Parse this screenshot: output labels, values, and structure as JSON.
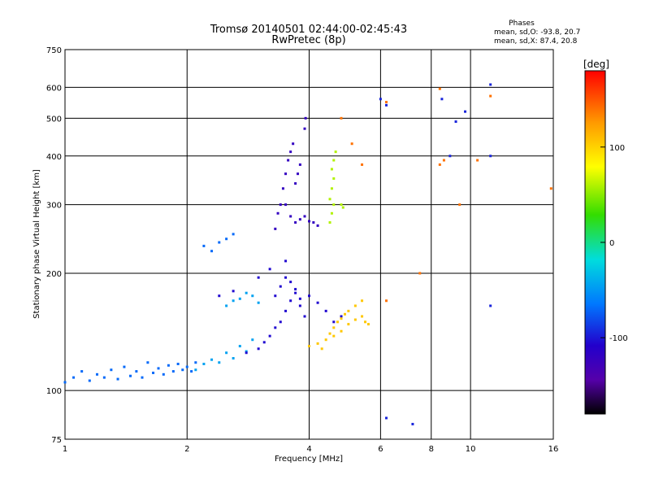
{
  "chart_data": {
    "type": "scatter",
    "title": "Tromsø 20140501 02:44:00-02:45:43",
    "subtitle": "RwPretec (8p)",
    "stats": {
      "heading": "Phases",
      "line1": "mean, sd,O: -93.8, 20.7",
      "line2": "mean, sd,X:  87.4, 20.8"
    },
    "xlabel": "Frequency [MHz]",
    "ylabel": "Stationary phase Virtual Height [km]",
    "x_scale": "log",
    "y_scale": "log",
    "xlim": [
      1,
      16
    ],
    "ylim": [
      75,
      750
    ],
    "x_ticks": [
      1,
      2,
      4,
      6,
      8,
      10,
      16
    ],
    "x_tick_labels": [
      "1",
      "2",
      "4",
      "6",
      "8",
      "10",
      "16"
    ],
    "y_ticks": [
      75,
      100,
      200,
      300,
      400,
      500,
      600,
      750
    ],
    "y_tick_labels": [
      "75",
      "100",
      "200",
      "300",
      "400",
      "500",
      "600",
      "750"
    ],
    "grid": true,
    "colorbar": {
      "label": "[deg]",
      "range": [
        -180,
        180
      ],
      "ticks": [
        100,
        0,
        -100
      ],
      "tick_labels": [
        "100",
        "0",
        "-100"
      ]
    },
    "series": [
      {
        "color_phase": -70,
        "points": [
          [
            1.0,
            105
          ],
          [
            1.05,
            108
          ],
          [
            1.1,
            112
          ],
          [
            1.15,
            106
          ],
          [
            1.2,
            110
          ],
          [
            1.25,
            108
          ],
          [
            1.3,
            113
          ],
          [
            1.35,
            107
          ],
          [
            1.4,
            115
          ],
          [
            1.45,
            109
          ],
          [
            1.5,
            112
          ],
          [
            1.55,
            108
          ],
          [
            1.6,
            118
          ],
          [
            1.65,
            111
          ],
          [
            1.7,
            114
          ],
          [
            1.75,
            110
          ],
          [
            1.8,
            116
          ],
          [
            1.85,
            112
          ],
          [
            1.9,
            117
          ],
          [
            1.95,
            113
          ],
          [
            2.0,
            115
          ],
          [
            2.05,
            112
          ],
          [
            2.1,
            118
          ],
          [
            2.2,
            235
          ],
          [
            2.3,
            228
          ],
          [
            2.4,
            240
          ],
          [
            2.5,
            245
          ],
          [
            2.6,
            252
          ]
        ]
      },
      {
        "color_phase": -45,
        "points": [
          [
            2.1,
            113
          ],
          [
            2.2,
            117
          ],
          [
            2.3,
            120
          ],
          [
            2.4,
            118
          ],
          [
            2.5,
            125
          ],
          [
            2.6,
            121
          ],
          [
            2.7,
            130
          ],
          [
            2.8,
            126
          ],
          [
            2.9,
            135
          ],
          [
            2.5,
            165
          ],
          [
            2.6,
            170
          ],
          [
            2.7,
            172
          ],
          [
            2.8,
            178
          ],
          [
            2.9,
            175
          ],
          [
            3.0,
            168
          ]
        ]
      },
      {
        "color_phase": -105,
        "points": [
          [
            2.8,
            125
          ],
          [
            3.0,
            128
          ],
          [
            3.1,
            133
          ],
          [
            3.2,
            138
          ],
          [
            3.3,
            145
          ],
          [
            3.4,
            150
          ],
          [
            3.5,
            160
          ],
          [
            3.6,
            170
          ],
          [
            3.7,
            178
          ],
          [
            3.8,
            165
          ],
          [
            3.9,
            155
          ],
          [
            3.3,
            175
          ],
          [
            3.4,
            185
          ],
          [
            3.5,
            195
          ],
          [
            3.6,
            190
          ],
          [
            3.7,
            182
          ],
          [
            3.8,
            172
          ],
          [
            4.0,
            175
          ],
          [
            4.2,
            168
          ],
          [
            4.4,
            160
          ],
          [
            4.6,
            150
          ],
          [
            4.8,
            155
          ],
          [
            3.2,
            205
          ],
          [
            3.5,
            215
          ],
          [
            2.6,
            180
          ],
          [
            2.4,
            175
          ],
          [
            3.0,
            195
          ]
        ]
      },
      {
        "color_phase": -120,
        "points": [
          [
            3.3,
            260
          ],
          [
            3.35,
            285
          ],
          [
            3.4,
            300
          ],
          [
            3.45,
            330
          ],
          [
            3.5,
            360
          ],
          [
            3.55,
            390
          ],
          [
            3.6,
            410
          ],
          [
            3.65,
            430
          ],
          [
            3.5,
            300
          ],
          [
            3.6,
            280
          ],
          [
            3.7,
            270
          ],
          [
            3.8,
            275
          ],
          [
            3.9,
            280
          ],
          [
            4.0,
            272
          ],
          [
            4.1,
            270
          ],
          [
            4.2,
            265
          ],
          [
            3.7,
            340
          ],
          [
            3.75,
            360
          ],
          [
            3.8,
            380
          ],
          [
            3.9,
            470
          ],
          [
            3.92,
            500
          ]
        ]
      },
      {
        "color_phase": 105,
        "points": [
          [
            4.0,
            130
          ],
          [
            4.2,
            132
          ],
          [
            4.4,
            135
          ],
          [
            4.5,
            140
          ],
          [
            4.6,
            145
          ],
          [
            4.7,
            150
          ],
          [
            4.8,
            153
          ],
          [
            4.9,
            157
          ],
          [
            5.0,
            160
          ],
          [
            5.2,
            165
          ],
          [
            5.4,
            170
          ],
          [
            4.3,
            128
          ],
          [
            4.6,
            138
          ],
          [
            4.8,
            142
          ],
          [
            5.0,
            148
          ],
          [
            5.2,
            152
          ],
          [
            5.4,
            155
          ],
          [
            5.5,
            150
          ],
          [
            5.6,
            148
          ]
        ]
      },
      {
        "color_phase": 60,
        "points": [
          [
            4.5,
            310
          ],
          [
            4.55,
            330
          ],
          [
            4.6,
            350
          ],
          [
            4.55,
            370
          ],
          [
            4.6,
            390
          ],
          [
            4.65,
            410
          ],
          [
            4.5,
            270
          ],
          [
            4.55,
            285
          ],
          [
            4.6,
            300
          ],
          [
            4.8,
            300
          ],
          [
            4.85,
            295
          ]
        ]
      },
      {
        "color_phase": 140,
        "points": [
          [
            6.2,
            550
          ],
          [
            6.2,
            170
          ],
          [
            7.5,
            200
          ],
          [
            8.4,
            380
          ],
          [
            8.4,
            595
          ],
          [
            8.6,
            390
          ],
          [
            9.4,
            300
          ],
          [
            10.4,
            390
          ],
          [
            11.2,
            570
          ],
          [
            15.8,
            330
          ],
          [
            4.8,
            500
          ],
          [
            5.1,
            430
          ],
          [
            5.4,
            380
          ]
        ]
      },
      {
        "color_phase": -95,
        "points": [
          [
            6.0,
            560
          ],
          [
            6.2,
            540
          ],
          [
            8.5,
            560
          ],
          [
            9.2,
            490
          ],
          [
            9.7,
            520
          ],
          [
            11.2,
            610
          ],
          [
            11.2,
            400
          ],
          [
            7.2,
            82
          ],
          [
            6.2,
            85
          ],
          [
            8.9,
            400
          ],
          [
            11.2,
            165
          ]
        ]
      }
    ]
  }
}
